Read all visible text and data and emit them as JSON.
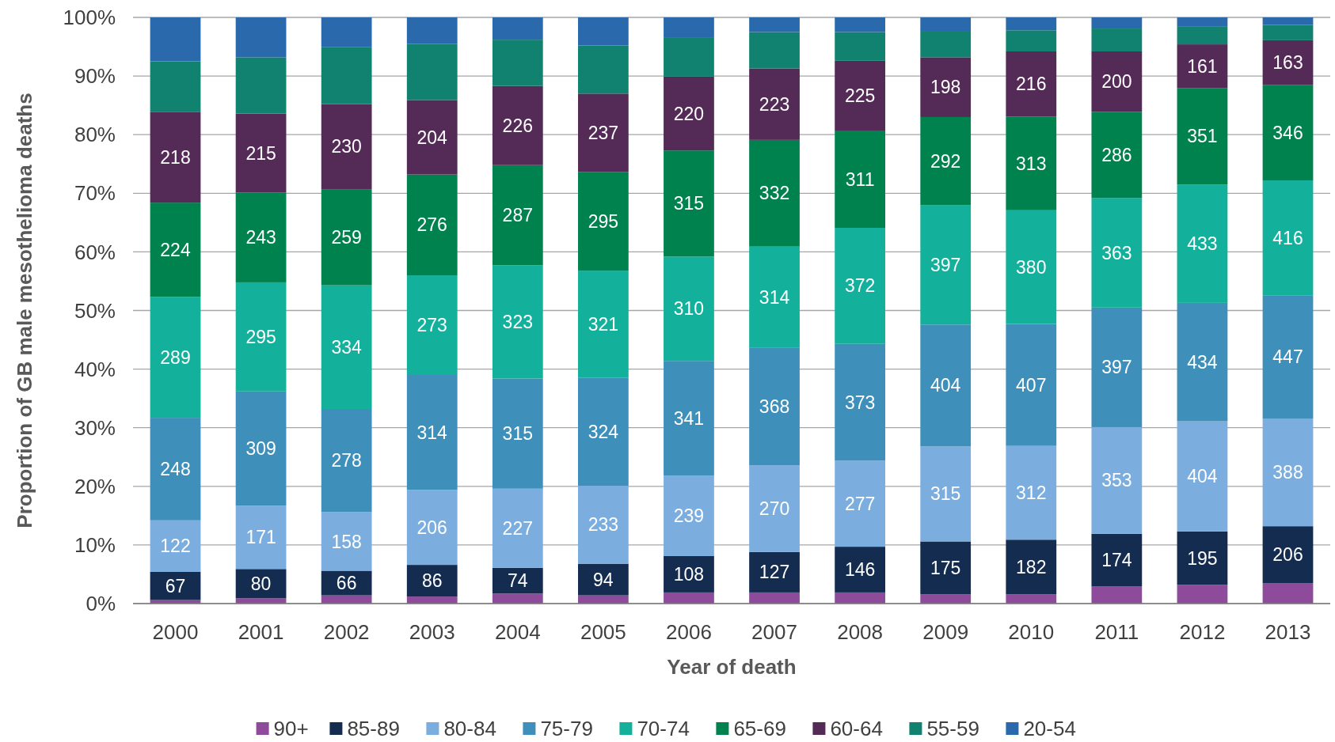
{
  "chart_data": {
    "type": "bar",
    "stacked": true,
    "xlabel": "Year of death",
    "ylabel": "Proportion of GB male mesothelioma deaths",
    "categories": [
      "2000",
      "2001",
      "2002",
      "2003",
      "2004",
      "2005",
      "2006",
      "2007",
      "2008",
      "2009",
      "2010",
      "2011",
      "2012",
      "2013"
    ],
    "ylim": [
      0,
      100
    ],
    "yticks": [
      {
        "value": 0,
        "label": "0%"
      },
      {
        "value": 10,
        "label": "10%"
      },
      {
        "value": 20,
        "label": "20%"
      },
      {
        "value": 30,
        "label": "30%"
      },
      {
        "value": 40,
        "label": "40%"
      },
      {
        "value": 50,
        "label": "50%"
      },
      {
        "value": 60,
        "label": "60%"
      },
      {
        "value": 70,
        "label": "70%"
      },
      {
        "value": 80,
        "label": "80%"
      },
      {
        "value": 90,
        "label": "90%"
      },
      {
        "value": 100,
        "label": "100%"
      }
    ],
    "grid": "y",
    "legend": "bottom",
    "series": [
      {
        "name": "90+",
        "color": "#8e4a9b",
        "values": [
          0.6,
          0.9,
          1.4,
          1.2,
          1.7,
          1.4,
          1.9,
          1.9,
          1.9,
          1.6,
          1.6,
          2.9,
          3.2,
          3.5
        ]
      },
      {
        "name": "85-89",
        "color": "#142c4f",
        "values": [
          4.8,
          5.0,
          4.2,
          5.4,
          4.4,
          5.4,
          6.2,
          6.9,
          7.8,
          9.0,
          9.3,
          9.0,
          9.1,
          9.7
        ]
      },
      {
        "name": "80-84",
        "color": "#7badde",
        "values": [
          8.8,
          10.8,
          10.0,
          12.8,
          13.5,
          13.3,
          13.7,
          14.8,
          14.7,
          16.2,
          16.0,
          18.2,
          18.8,
          18.3
        ]
      },
      {
        "name": "75-79",
        "color": "#3f8fbb",
        "values": [
          17.5,
          19.5,
          17.6,
          19.6,
          18.8,
          18.4,
          19.6,
          20.1,
          19.9,
          20.8,
          20.8,
          20.4,
          20.2,
          21.1
        ]
      },
      {
        "name": "70-74",
        "color": "#13b09b",
        "values": [
          20.6,
          18.6,
          21.1,
          17.0,
          19.3,
          18.3,
          17.8,
          17.2,
          19.8,
          20.4,
          19.4,
          18.7,
          20.2,
          19.6
        ]
      },
      {
        "name": "65-69",
        "color": "#00824f",
        "values": [
          16.1,
          15.3,
          16.4,
          17.2,
          17.1,
          16.8,
          18.1,
          18.2,
          16.6,
          15.0,
          16.0,
          14.7,
          16.4,
          16.3
        ]
      },
      {
        "name": "60-64",
        "color": "#542a57",
        "values": [
          15.5,
          13.5,
          14.5,
          12.7,
          13.5,
          13.4,
          12.6,
          12.2,
          11.9,
          10.2,
          11.1,
          10.3,
          7.5,
          7.6
        ]
      },
      {
        "name": "55-59",
        "color": "#10826f",
        "values": [
          8.6,
          9.6,
          9.7,
          9.6,
          7.9,
          8.2,
          6.6,
          6.2,
          4.9,
          4.5,
          3.6,
          3.9,
          3.0,
          2.6
        ]
      },
      {
        "name": "20-54",
        "color": "#2a6aac",
        "values": [
          7.5,
          6.8,
          5.1,
          4.5,
          3.8,
          4.8,
          3.5,
          2.5,
          2.5,
          2.3,
          2.2,
          1.9,
          1.6,
          1.3
        ]
      }
    ],
    "annotations": [
      {
        "text": "67",
        "x": "2000",
        "y": 5.4
      },
      {
        "text": "122",
        "x": "2000",
        "y": 14.2
      },
      {
        "text": "248",
        "x": "2000",
        "y": 31.7
      },
      {
        "text": "289",
        "x": "2000",
        "y": 52.3
      },
      {
        "text": "224",
        "x": "2000",
        "y": 68.4
      },
      {
        "text": "218",
        "x": "2000",
        "y": 83.9
      },
      {
        "text": "80",
        "x": "2001",
        "y": 5.9
      },
      {
        "text": "171",
        "x": "2001",
        "y": 16.7
      },
      {
        "text": "309",
        "x": "2001",
        "y": 36.2
      },
      {
        "text": "295",
        "x": "2001",
        "y": 54.8
      },
      {
        "text": "243",
        "x": "2001",
        "y": 70.1
      },
      {
        "text": "215",
        "x": "2001",
        "y": 83.6
      },
      {
        "text": "66",
        "x": "2002",
        "y": 5.6
      },
      {
        "text": "158",
        "x": "2002",
        "y": 15.6
      },
      {
        "text": "278",
        "x": "2002",
        "y": 33.2
      },
      {
        "text": "334",
        "x": "2002",
        "y": 54.3
      },
      {
        "text": "259",
        "x": "2002",
        "y": 70.7
      },
      {
        "text": "230",
        "x": "2002",
        "y": 85.2
      },
      {
        "text": "86",
        "x": "2003",
        "y": 6.6
      },
      {
        "text": "206",
        "x": "2003",
        "y": 19.4
      },
      {
        "text": "314",
        "x": "2003",
        "y": 39.0
      },
      {
        "text": "273",
        "x": "2003",
        "y": 56.0
      },
      {
        "text": "276",
        "x": "2003",
        "y": 73.2
      },
      {
        "text": "204",
        "x": "2003",
        "y": 85.9
      },
      {
        "text": "74",
        "x": "2004",
        "y": 6.1
      },
      {
        "text": "227",
        "x": "2004",
        "y": 19.6
      },
      {
        "text": "315",
        "x": "2004",
        "y": 38.4
      },
      {
        "text": "323",
        "x": "2004",
        "y": 57.7
      },
      {
        "text": "287",
        "x": "2004",
        "y": 74.8
      },
      {
        "text": "226",
        "x": "2004",
        "y": 88.3
      },
      {
        "text": "94",
        "x": "2005",
        "y": 6.8
      },
      {
        "text": "233",
        "x": "2005",
        "y": 20.1
      },
      {
        "text": "324",
        "x": "2005",
        "y": 38.5
      },
      {
        "text": "321",
        "x": "2005",
        "y": 56.8
      },
      {
        "text": "295",
        "x": "2005",
        "y": 73.6
      },
      {
        "text": "237",
        "x": "2005",
        "y": 87.0
      },
      {
        "text": "108",
        "x": "2006",
        "y": 8.1
      },
      {
        "text": "239",
        "x": "2006",
        "y": 21.8
      },
      {
        "text": "341",
        "x": "2006",
        "y": 41.4
      },
      {
        "text": "310",
        "x": "2006",
        "y": 59.2
      },
      {
        "text": "315",
        "x": "2006",
        "y": 77.3
      },
      {
        "text": "220",
        "x": "2006",
        "y": 89.9
      },
      {
        "text": "127",
        "x": "2007",
        "y": 8.8
      },
      {
        "text": "270",
        "x": "2007",
        "y": 23.6
      },
      {
        "text": "368",
        "x": "2007",
        "y": 43.7
      },
      {
        "text": "314",
        "x": "2007",
        "y": 60.9
      },
      {
        "text": "332",
        "x": "2007",
        "y": 79.1
      },
      {
        "text": "223",
        "x": "2007",
        "y": 91.3
      },
      {
        "text": "146",
        "x": "2008",
        "y": 9.7
      },
      {
        "text": "277",
        "x": "2008",
        "y": 24.4
      },
      {
        "text": "373",
        "x": "2008",
        "y": 44.3
      },
      {
        "text": "372",
        "x": "2008",
        "y": 64.1
      },
      {
        "text": "311",
        "x": "2008",
        "y": 80.7
      },
      {
        "text": "225",
        "x": "2008",
        "y": 92.6
      },
      {
        "text": "175",
        "x": "2009",
        "y": 10.6
      },
      {
        "text": "315",
        "x": "2009",
        "y": 26.8
      },
      {
        "text": "404",
        "x": "2009",
        "y": 47.6
      },
      {
        "text": "397",
        "x": "2009",
        "y": 68.0
      },
      {
        "text": "292",
        "x": "2009",
        "y": 83.0
      },
      {
        "text": "198",
        "x": "2009",
        "y": 93.2
      },
      {
        "text": "182",
        "x": "2010",
        "y": 10.9
      },
      {
        "text": "312",
        "x": "2010",
        "y": 26.9
      },
      {
        "text": "407",
        "x": "2010",
        "y": 47.7
      },
      {
        "text": "380",
        "x": "2010",
        "y": 67.1
      },
      {
        "text": "313",
        "x": "2010",
        "y": 83.1
      },
      {
        "text": "216",
        "x": "2010",
        "y": 94.2
      },
      {
        "text": "174",
        "x": "2011",
        "y": 11.9
      },
      {
        "text": "353",
        "x": "2011",
        "y": 30.1
      },
      {
        "text": "397",
        "x": "2011",
        "y": 50.5
      },
      {
        "text": "363",
        "x": "2011",
        "y": 69.2
      },
      {
        "text": "286",
        "x": "2011",
        "y": 83.9
      },
      {
        "text": "200",
        "x": "2011",
        "y": 94.2
      },
      {
        "text": "195",
        "x": "2012",
        "y": 12.3
      },
      {
        "text": "404",
        "x": "2012",
        "y": 31.1
      },
      {
        "text": "434",
        "x": "2012",
        "y": 51.3
      },
      {
        "text": "433",
        "x": "2012",
        "y": 71.5
      },
      {
        "text": "351",
        "x": "2012",
        "y": 87.9
      },
      {
        "text": "161",
        "x": "2012",
        "y": 95.4
      },
      {
        "text": "206",
        "x": "2013",
        "y": 13.2
      },
      {
        "text": "388",
        "x": "2013",
        "y": 31.5
      },
      {
        "text": "447",
        "x": "2013",
        "y": 52.6
      },
      {
        "text": "416",
        "x": "2013",
        "y": 72.2
      },
      {
        "text": "346",
        "x": "2013",
        "y": 88.5
      },
      {
        "text": "163",
        "x": "2013",
        "y": 96.1
      }
    ]
  }
}
